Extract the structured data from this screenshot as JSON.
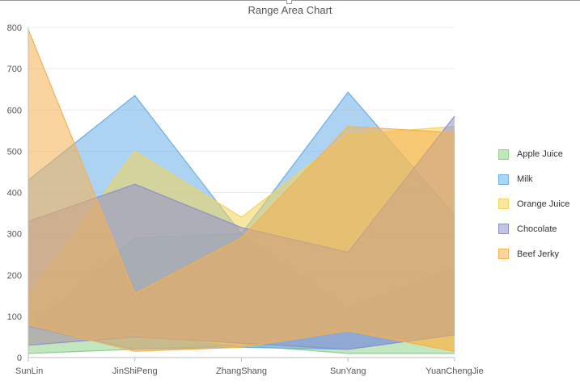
{
  "chart_data": {
    "type": "area",
    "title": "Range Area Chart",
    "xlabel": "",
    "ylabel": "",
    "categories": [
      "SunLin",
      "JinShiPeng",
      "ZhangShang",
      "SunYang",
      "YuanChengJie"
    ],
    "ylim": [
      0,
      800
    ],
    "yticks": [
      0,
      100,
      200,
      300,
      400,
      500,
      600,
      700,
      800
    ],
    "grid": true,
    "legend_position": "right",
    "series": [
      {
        "name": "Apple Juice",
        "color": "#8fd18a",
        "low": [
          10,
          20,
          30,
          10,
          10
        ],
        "high": [
          70,
          290,
          300,
          120,
          220
        ]
      },
      {
        "name": "Milk",
        "color": "#6aaeea",
        "low": [
          75,
          20,
          25,
          20,
          55
        ],
        "high": [
          430,
          635,
          300,
          643,
          345
        ]
      },
      {
        "name": "Orange Juice",
        "color": "#f2d458",
        "low": [
          30,
          55,
          30,
          70,
          15
        ],
        "high": [
          150,
          500,
          340,
          540,
          560
        ]
      },
      {
        "name": "Chocolate",
        "color": "#8f8fcf",
        "low": [
          30,
          50,
          35,
          20,
          55
        ],
        "high": [
          330,
          420,
          315,
          255,
          585
        ]
      },
      {
        "name": "Beef Jerky",
        "color": "#f5b04f",
        "low": [
          80,
          15,
          25,
          65,
          15
        ],
        "high": [
          795,
          155,
          290,
          560,
          545
        ]
      }
    ]
  }
}
